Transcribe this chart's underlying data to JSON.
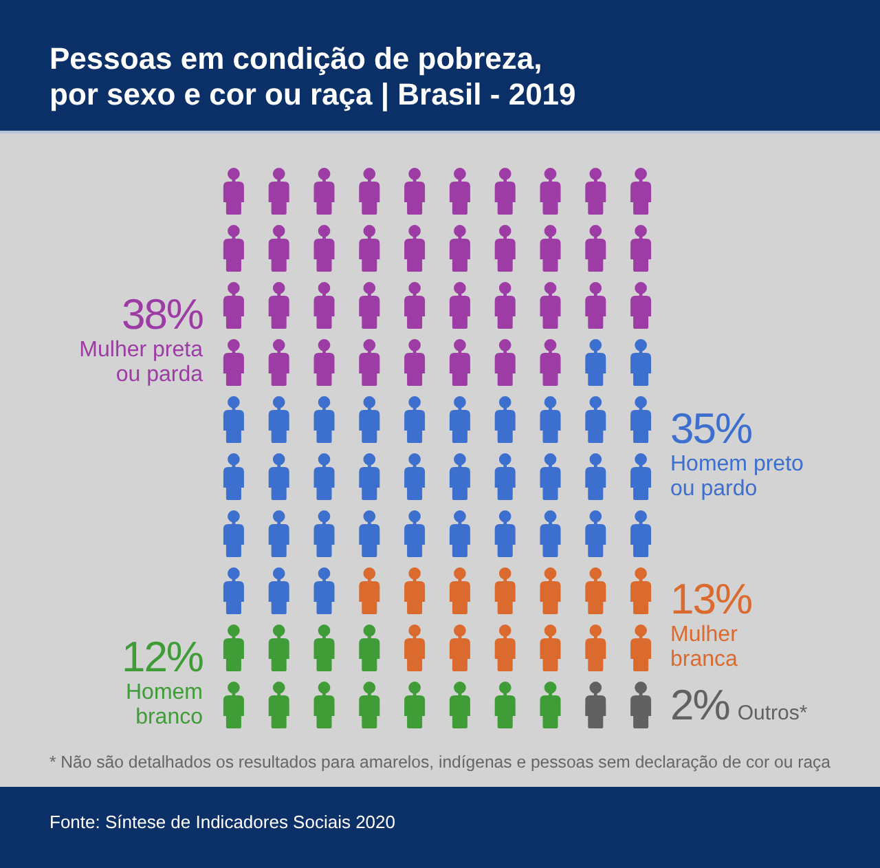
{
  "chart_data": {
    "type": "other",
    "title": "Pessoas em condição de pobreza, por sexo e cor ou raça | Brasil - 2019",
    "categories": [
      "Mulher preta ou parda",
      "Homem preto ou pardo",
      "Mulher branca",
      "Homem branco",
      "Outros*"
    ],
    "values": [
      38,
      35,
      13,
      12,
      2
    ],
    "value_labels": [
      "38%",
      "35%",
      "13%",
      "12%",
      "2%"
    ],
    "colors": [
      "#9c3ca4",
      "#3d6fce",
      "#db6a2f",
      "#3f9c37",
      "#616161"
    ],
    "annotations": [
      "* Não são detalhados os resultados para amarelos, indígenas e pessoas sem declaração de cor ou raça",
      "Fonte: Síntese de Indicadores Sociais 2020"
    ]
  }
}
